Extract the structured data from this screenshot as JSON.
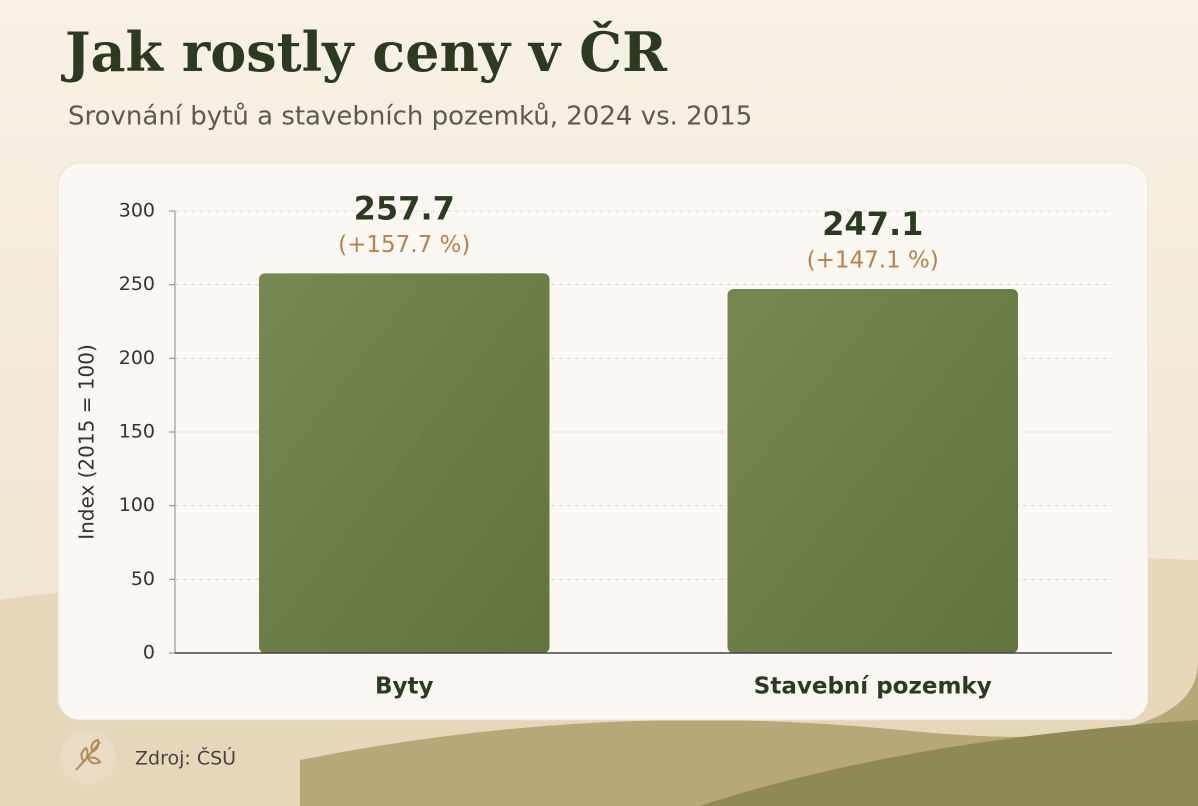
{
  "chart_data": {
    "type": "bar",
    "title": "Jak rostly ceny v ČR",
    "subtitle": "Srovnání bytů a stavebních pozemků, 2024 vs. 2015",
    "ylabel": "Index (2015 = 100)",
    "categories": [
      "Byty",
      "Stavební pozemky"
    ],
    "values": [
      257.7,
      247.1
    ],
    "annotations": [
      "(+157.7 %)",
      "(+147.1 %)"
    ],
    "color": "#6b7d42",
    "ylim": [
      0,
      300
    ],
    "yticks": [
      0,
      50,
      100,
      150,
      200,
      250,
      300
    ],
    "grid": true,
    "source": "Zdroj: ČSÚ"
  }
}
